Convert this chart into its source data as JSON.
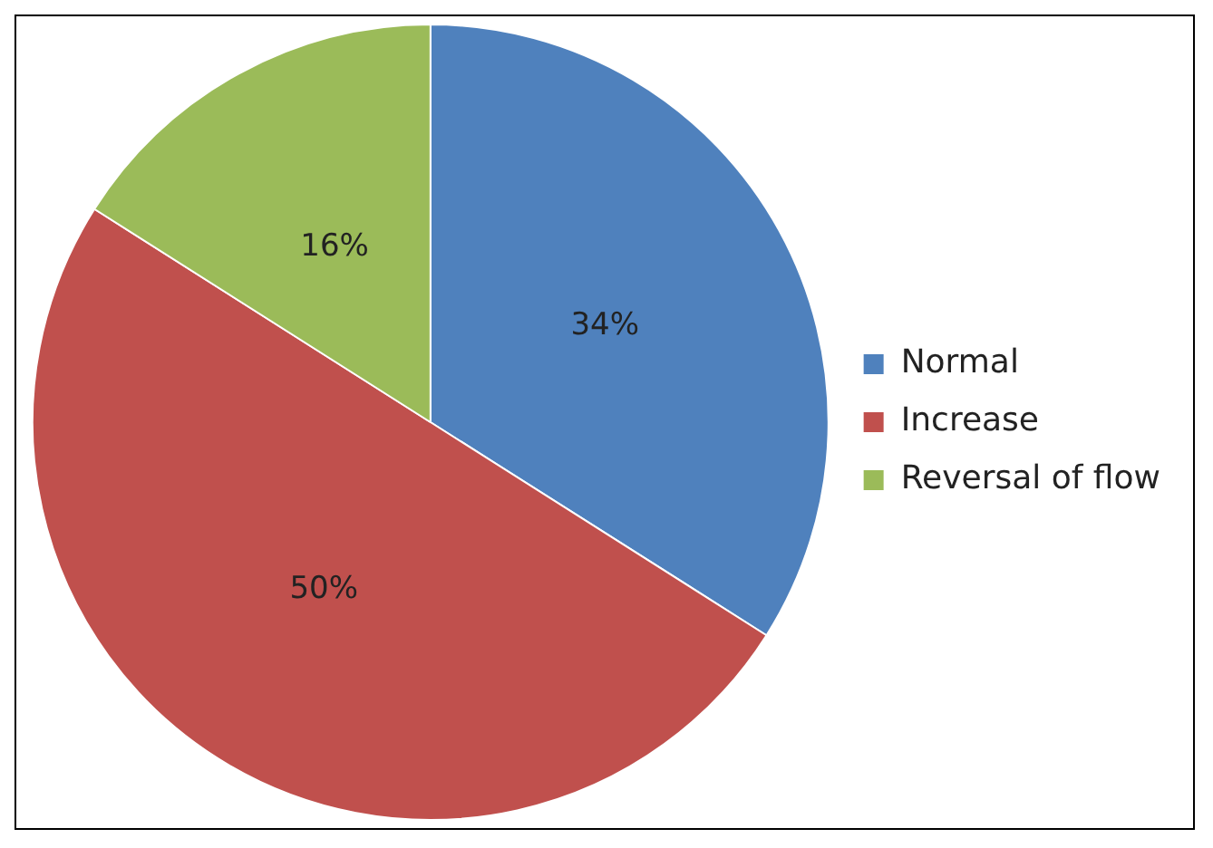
{
  "chart_data": {
    "type": "pie",
    "categories": [
      "Normal",
      "Increase",
      "Reversal of flow"
    ],
    "values": [
      34,
      50,
      16
    ],
    "value_labels": [
      "34%",
      "50%",
      "16%"
    ],
    "colors": [
      "#4f81bd",
      "#c0504d",
      "#9bbb59"
    ],
    "legend": "right"
  }
}
